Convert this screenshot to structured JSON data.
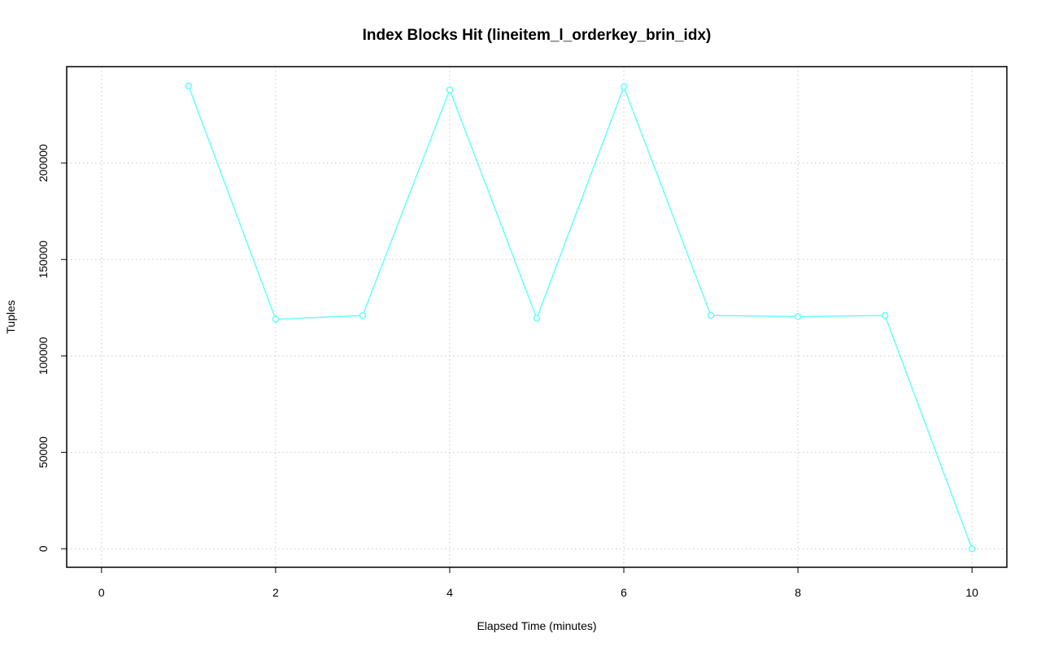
{
  "chart_data": {
    "type": "line",
    "title": "Index Blocks Hit (lineitem_l_orderkey_brin_idx)",
    "x_label": "Elapsed Time (minutes)",
    "y_label": "Tuples",
    "x": [
      1,
      2,
      3,
      4,
      5,
      6,
      7,
      8,
      9,
      10
    ],
    "series": [
      {
        "color": "#66ffff",
        "values": [
          240000,
          119000,
          121000,
          238000,
          119500,
          239500,
          121000,
          120400,
          121000,
          0
        ]
      }
    ],
    "xlim": [
      -0.4,
      10.4
    ],
    "xticks": [
      0,
      2,
      4,
      6,
      8,
      10
    ],
    "ylim": [
      -9600,
      250000
    ],
    "yticks": [
      0,
      50000,
      100000,
      150000,
      200000
    ],
    "grid": true
  }
}
